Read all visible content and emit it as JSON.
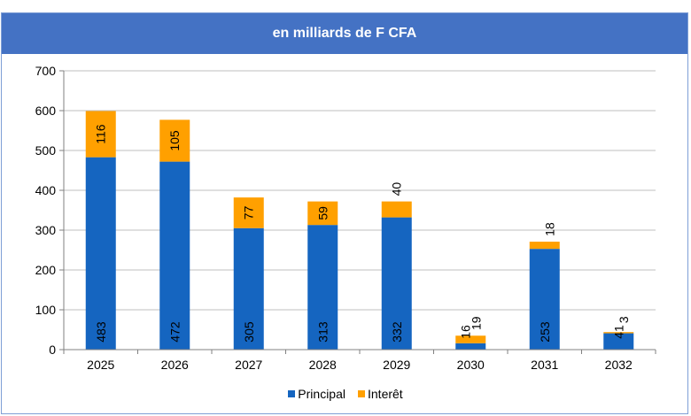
{
  "colors": {
    "principal": "#1565c0",
    "interet": "#ffa000",
    "header_bg": "#4472c4",
    "grid": "#bfbfbf"
  },
  "chart_data": {
    "type": "bar",
    "stacked": true,
    "title": "en milliards de F CFA",
    "xlabel": "",
    "ylabel": "",
    "categories": [
      "2025",
      "2026",
      "2027",
      "2028",
      "2029",
      "2030",
      "2031",
      "2032"
    ],
    "series": [
      {
        "name": "Principal",
        "values": [
          483,
          472,
          305,
          313,
          332,
          16,
          253,
          41
        ]
      },
      {
        "name": "Interêt",
        "values": [
          116,
          105,
          77,
          59,
          40,
          19,
          18,
          3
        ]
      }
    ],
    "ylim": [
      0,
      700
    ],
    "yticks": [
      0,
      100,
      200,
      300,
      400,
      500,
      600,
      700
    ],
    "grid": true,
    "legend_position": "bottom"
  }
}
